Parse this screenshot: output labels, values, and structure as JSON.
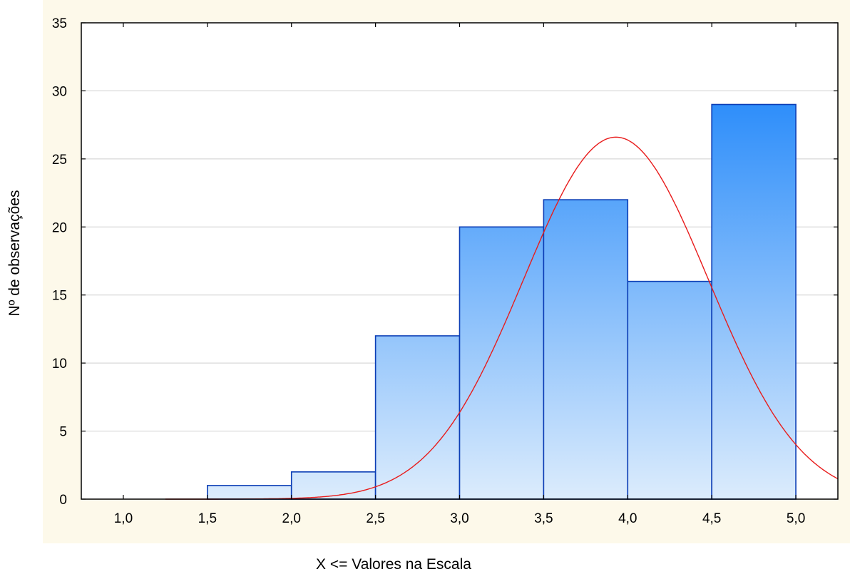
{
  "chart_data": {
    "type": "bar",
    "subtype": "histogram",
    "xlabel": "X <= Valores na Escala",
    "ylabel": "Nº de observações",
    "xlim": [
      0.75,
      5.25
    ],
    "ylim": [
      0,
      35
    ],
    "x_ticks": [
      "1,0",
      "1,5",
      "2,0",
      "2,5",
      "3,0",
      "3,5",
      "4,0",
      "4,5",
      "5,0"
    ],
    "x_tick_values": [
      1.0,
      1.5,
      2.0,
      2.5,
      3.0,
      3.5,
      4.0,
      4.5,
      5.0
    ],
    "y_ticks": [
      "0",
      "5",
      "10",
      "15",
      "20",
      "25",
      "30",
      "35"
    ],
    "y_tick_values": [
      0,
      5,
      10,
      15,
      20,
      25,
      30,
      35
    ],
    "bins": [
      {
        "from": 1.0,
        "to": 1.5,
        "count": 0
      },
      {
        "from": 1.5,
        "to": 2.0,
        "count": 1
      },
      {
        "from": 2.0,
        "to": 2.5,
        "count": 2
      },
      {
        "from": 2.5,
        "to": 3.0,
        "count": 12
      },
      {
        "from": 3.0,
        "to": 3.5,
        "count": 20
      },
      {
        "from": 3.5,
        "to": 4.0,
        "count": 22
      },
      {
        "from": 4.0,
        "to": 4.5,
        "count": 16
      },
      {
        "from": 4.5,
        "to": 5.0,
        "count": 29
      }
    ],
    "fit_curve": {
      "kind": "normal",
      "mean": 3.93,
      "sd": 0.55,
      "peak": 26.6,
      "x_range": [
        1.25,
        5.25
      ],
      "color": "#e81c1c"
    },
    "grid": true,
    "bar_colors": {
      "top": "#2e8efa",
      "bottom": "#dcecfc",
      "edge": "#0b3db5"
    },
    "plot_background": "#ffffff",
    "frame_background": "#fdf9ea"
  }
}
